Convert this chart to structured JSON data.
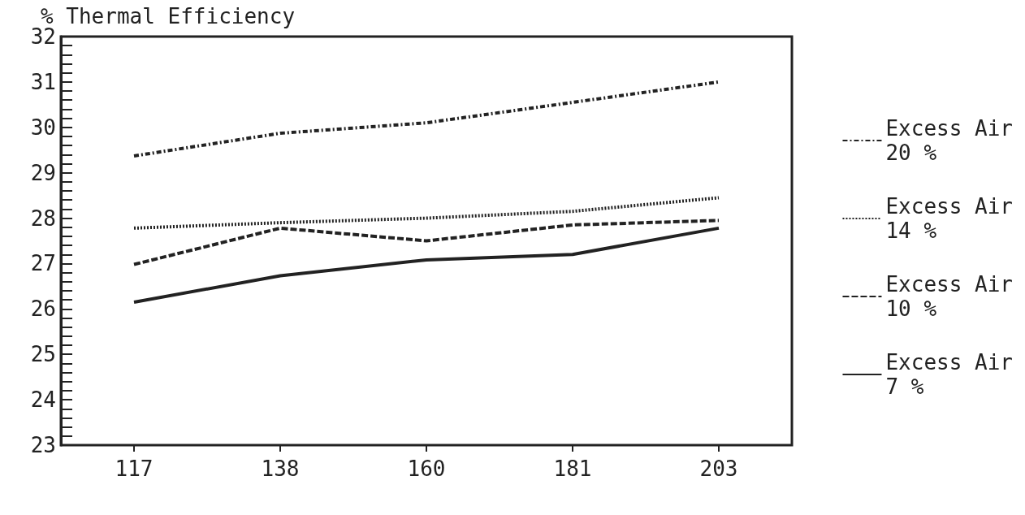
{
  "chart_data": {
    "type": "line",
    "ylabel": "% Thermal Efficiency",
    "categories": [
      "117",
      "138",
      "160",
      "181",
      "203"
    ],
    "ylim": [
      23,
      32
    ],
    "yticks": [
      23,
      {
        "value": 23.2,
        "label": null
      },
      {
        "value": 23.4,
        "label": null
      },
      {
        "value": 23.6,
        "label": null
      },
      {
        "value": 23.8,
        "label": null
      },
      24,
      {
        "value": 24.2,
        "label": null
      },
      {
        "value": 24.4,
        "label": null
      },
      {
        "value": 24.6,
        "label": null
      },
      {
        "value": 24.8,
        "label": null
      },
      25,
      {
        "value": 25.2,
        "label": null
      },
      {
        "value": 25.4,
        "label": null
      },
      {
        "value": 25.6,
        "label": null
      },
      {
        "value": 25.8,
        "label": null
      },
      26,
      {
        "value": 26.2,
        "label": null
      },
      {
        "value": 26.4,
        "label": null
      },
      {
        "value": 26.6,
        "label": null
      },
      {
        "value": 26.8,
        "label": null
      },
      27,
      {
        "value": 27.2,
        "label": null
      },
      {
        "value": 27.4,
        "label": null
      },
      {
        "value": 27.6,
        "label": null
      },
      {
        "value": 27.8,
        "label": null
      },
      28,
      {
        "value": 28.2,
        "label": null
      },
      {
        "value": 28.4,
        "label": null
      },
      {
        "value": 28.6,
        "label": null
      },
      {
        "value": 28.8,
        "label": null
      },
      29,
      {
        "value": 29.2,
        "label": null
      },
      {
        "value": 29.4,
        "label": null
      },
      {
        "value": 29.6,
        "label": null
      },
      {
        "value": 29.8,
        "label": null
      },
      30,
      {
        "value": 30.2,
        "label": null
      },
      {
        "value": 30.4,
        "label": null
      },
      {
        "value": 30.6,
        "label": null
      },
      {
        "value": 30.8,
        "label": null
      },
      31,
      {
        "value": 31.2,
        "label": null
      },
      {
        "value": 31.4,
        "label": null
      },
      {
        "value": 31.6,
        "label": null
      },
      {
        "value": 31.8,
        "label": null
      },
      32
    ],
    "grid": false,
    "legend": "right",
    "marker": "none",
    "series": [
      {
        "name": "Excess Air 20 %",
        "color": "#222222",
        "line_style": "dashdot",
        "values": [
          29.37,
          29.87,
          30.1,
          30.55,
          31.0
        ]
      },
      {
        "name": "Excess Air 14 %",
        "color": "#222222",
        "line_style": "dotted",
        "values": [
          27.78,
          27.9,
          28.0,
          28.15,
          28.45
        ]
      },
      {
        "name": "Excess Air 10 %",
        "color": "#222222",
        "line_style": "dashed",
        "values": [
          26.98,
          27.78,
          27.5,
          27.85,
          27.95
        ]
      },
      {
        "name": "Excess Air 7 %",
        "color": "#222222",
        "line_style": "solid",
        "values": [
          26.15,
          26.73,
          27.08,
          27.2,
          27.78
        ]
      }
    ]
  }
}
